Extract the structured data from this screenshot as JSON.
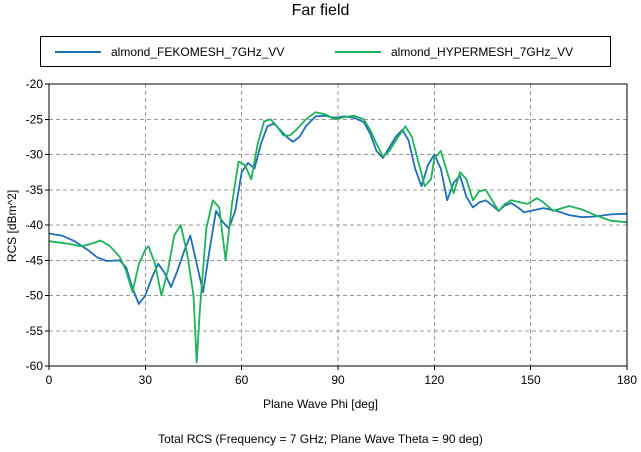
{
  "chart_data": {
    "type": "line",
    "title": "Far field",
    "xlabel": "Plane Wave Phi [deg]",
    "ylabel": "RCS [dBm^2]",
    "caption": "Total RCS (Frequency = 7 GHz; Plane Wave Theta = 90 deg)",
    "xlim": [
      0,
      180
    ],
    "ylim": [
      -60,
      -20
    ],
    "xticks": [
      0,
      30,
      60,
      90,
      120,
      150,
      180
    ],
    "yticks": [
      -60,
      -55,
      -50,
      -45,
      -40,
      -35,
      -30,
      -25,
      -20
    ],
    "grid": true,
    "legend_position": "top",
    "series": [
      {
        "name": "almond_FEKOMESH_7GHz_VV",
        "color": "#1f6fb5",
        "points": [
          [
            0,
            -41.2
          ],
          [
            4,
            -41.5
          ],
          [
            8,
            -42.3
          ],
          [
            12,
            -43.5
          ],
          [
            15,
            -44.6
          ],
          [
            18,
            -45.1
          ],
          [
            22,
            -45.0
          ],
          [
            24,
            -46.0
          ],
          [
            26,
            -49.0
          ],
          [
            28,
            -51.2
          ],
          [
            30,
            -50.0
          ],
          [
            32,
            -47.5
          ],
          [
            34,
            -45.5
          ],
          [
            36,
            -46.8
          ],
          [
            38,
            -48.8
          ],
          [
            40,
            -46.5
          ],
          [
            42,
            -43.8
          ],
          [
            44,
            -41.5
          ],
          [
            46,
            -45.5
          ],
          [
            48,
            -49.5
          ],
          [
            50,
            -43.5
          ],
          [
            52,
            -38.0
          ],
          [
            54,
            -39.5
          ],
          [
            56,
            -40.5
          ],
          [
            58,
            -38.0
          ],
          [
            60,
            -32.5
          ],
          [
            62,
            -31.2
          ],
          [
            64,
            -32.0
          ],
          [
            66,
            -28.5
          ],
          [
            68,
            -26.0
          ],
          [
            70,
            -25.6
          ],
          [
            72,
            -26.5
          ],
          [
            74,
            -27.5
          ],
          [
            76,
            -28.2
          ],
          [
            78,
            -27.5
          ],
          [
            80,
            -26.0
          ],
          [
            83,
            -24.6
          ],
          [
            86,
            -24.5
          ],
          [
            89,
            -24.8
          ],
          [
            92,
            -24.6
          ],
          [
            95,
            -24.8
          ],
          [
            98,
            -25.4
          ],
          [
            100,
            -27.0
          ],
          [
            102,
            -29.5
          ],
          [
            104,
            -30.5
          ],
          [
            106,
            -29.0
          ],
          [
            108,
            -27.5
          ],
          [
            110,
            -26.5
          ],
          [
            112,
            -28.0
          ],
          [
            114,
            -32.0
          ],
          [
            116,
            -34.5
          ],
          [
            118,
            -31.5
          ],
          [
            120,
            -30.0
          ],
          [
            122,
            -32.0
          ],
          [
            124,
            -36.5
          ],
          [
            126,
            -34.0
          ],
          [
            128,
            -33.0
          ],
          [
            130,
            -36.0
          ],
          [
            132,
            -37.5
          ],
          [
            134,
            -36.8
          ],
          [
            136,
            -36.5
          ],
          [
            138,
            -37.2
          ],
          [
            140,
            -38.0
          ],
          [
            142,
            -37.2
          ],
          [
            144,
            -36.9
          ],
          [
            146,
            -37.5
          ],
          [
            148,
            -38.2
          ],
          [
            150,
            -38.0
          ],
          [
            154,
            -37.6
          ],
          [
            158,
            -38.0
          ],
          [
            162,
            -38.6
          ],
          [
            166,
            -38.9
          ],
          [
            170,
            -38.8
          ],
          [
            175,
            -38.5
          ],
          [
            180,
            -38.4
          ]
        ]
      },
      {
        "name": "almond_HYPERMESH_7GHz_VV",
        "color": "#1db35a",
        "points": [
          [
            0,
            -42.3
          ],
          [
            5,
            -42.6
          ],
          [
            10,
            -43.0
          ],
          [
            13,
            -42.7
          ],
          [
            16,
            -42.2
          ],
          [
            19,
            -43.0
          ],
          [
            22,
            -44.5
          ],
          [
            24,
            -46.5
          ],
          [
            26,
            -49.5
          ],
          [
            28,
            -45.5
          ],
          [
            30,
            -43.5
          ],
          [
            31,
            -43.0
          ],
          [
            33,
            -45.5
          ],
          [
            35,
            -50.0
          ],
          [
            37,
            -46.5
          ],
          [
            39,
            -41.5
          ],
          [
            41,
            -40.0
          ],
          [
            43,
            -44.0
          ],
          [
            45,
            -50.0
          ],
          [
            46,
            -59.5
          ],
          [
            47,
            -52.0
          ],
          [
            49,
            -40.5
          ],
          [
            51,
            -36.5
          ],
          [
            53,
            -37.5
          ],
          [
            55,
            -45.0
          ],
          [
            57,
            -37.0
          ],
          [
            59,
            -31.0
          ],
          [
            61,
            -31.5
          ],
          [
            63,
            -33.5
          ],
          [
            65,
            -28.5
          ],
          [
            67,
            -25.3
          ],
          [
            69,
            -25.0
          ],
          [
            71,
            -26.0
          ],
          [
            73,
            -27.3
          ],
          [
            75,
            -27.3
          ],
          [
            77,
            -26.5
          ],
          [
            80,
            -25.0
          ],
          [
            83,
            -24.0
          ],
          [
            86,
            -24.3
          ],
          [
            89,
            -25.0
          ],
          [
            92,
            -24.7
          ],
          [
            95,
            -24.5
          ],
          [
            98,
            -25.0
          ],
          [
            100,
            -26.5
          ],
          [
            102,
            -28.5
          ],
          [
            104,
            -30.3
          ],
          [
            106,
            -29.5
          ],
          [
            108,
            -28.0
          ],
          [
            111,
            -26.0
          ],
          [
            113,
            -27.5
          ],
          [
            115,
            -31.0
          ],
          [
            117,
            -34.5
          ],
          [
            119,
            -33.5
          ],
          [
            120,
            -30.5
          ],
          [
            122,
            -29.5
          ],
          [
            124,
            -32.5
          ],
          [
            126,
            -35.5
          ],
          [
            128,
            -32.5
          ],
          [
            130,
            -33.5
          ],
          [
            132,
            -36.5
          ],
          [
            134,
            -35.2
          ],
          [
            136,
            -35.0
          ],
          [
            138,
            -36.5
          ],
          [
            140,
            -38.0
          ],
          [
            142,
            -37.0
          ],
          [
            144,
            -36.5
          ],
          [
            146,
            -36.7
          ],
          [
            149,
            -37.0
          ],
          [
            152,
            -36.2
          ],
          [
            154,
            -36.8
          ],
          [
            157,
            -38.0
          ],
          [
            162,
            -37.3
          ],
          [
            166,
            -37.8
          ],
          [
            170,
            -38.6
          ],
          [
            175,
            -39.4
          ],
          [
            180,
            -39.6
          ]
        ]
      }
    ]
  }
}
